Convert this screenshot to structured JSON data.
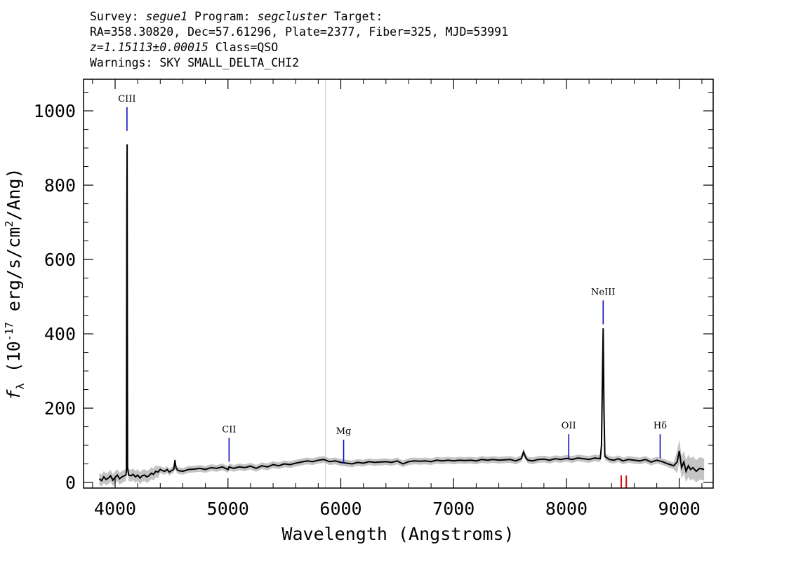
{
  "header": {
    "line1": {
      "survey_label": "Survey:",
      "survey": "segue1",
      "program_label": "Program:",
      "program": "segcluster",
      "target_label": "Target:"
    },
    "line2": "RA=358.30820, Dec=57.61296, Plate=2377, Fiber=325, MJD=53991",
    "line3": {
      "z": "z=1.15113±0.00015",
      "class": "Class=QSO"
    },
    "line4": "Warnings: SKY SMALL_DELTA_CHI2"
  },
  "chart_data": {
    "type": "line",
    "xlabel": "Wavelength (Angstroms)",
    "ylabel": "f",
    "ylabel_sub": "λ",
    "ylabel_rest": " (10",
    "ylabel_exp": "-17",
    "ylabel_unit": " erg/s/cm",
    "ylabel_unit_exp": "2",
    "ylabel_end": "/Ang)",
    "xlim": [
      3720,
      9300
    ],
    "ylim": [
      -15,
      1085
    ],
    "xticks": [
      4000,
      5000,
      6000,
      7000,
      8000,
      9000
    ],
    "yticks": [
      0,
      200,
      400,
      600,
      800,
      1000
    ],
    "tick_labels_x": [
      "4000",
      "5000",
      "6000",
      "7000",
      "8000",
      "9000"
    ],
    "tick_labels_y": [
      "0",
      "200",
      "400",
      "600",
      "800",
      "1000"
    ],
    "vertical_reference_x": 5865,
    "emission_lines": [
      {
        "name": "CIII",
        "wavelength": 4105,
        "label_y": 1025
      },
      {
        "name": "CII",
        "wavelength": 5010,
        "label_y": 135
      },
      {
        "name": "Mg",
        "wavelength": 6025,
        "label_y": 130
      },
      {
        "name": "OII",
        "wavelength": 8020,
        "label_y": 145
      },
      {
        "name": "NeIII",
        "wavelength": 8325,
        "label_y": 505
      },
      {
        "name": "Hδ",
        "wavelength": 8830,
        "label_y": 145
      }
    ],
    "red_marks_x": [
      8485,
      8530
    ],
    "spectrum_points": [
      [
        3860,
        10
      ],
      [
        3880,
        5
      ],
      [
        3900,
        15
      ],
      [
        3920,
        8
      ],
      [
        3940,
        12
      ],
      [
        3960,
        18
      ],
      [
        3980,
        6
      ],
      [
        4000,
        14
      ],
      [
        4020,
        20
      ],
      [
        4040,
        10
      ],
      [
        4060,
        15
      ],
      [
        4080,
        18
      ],
      [
        4095,
        20
      ],
      [
        4100,
        30
      ],
      [
        4104,
        740
      ],
      [
        4106,
        910
      ],
      [
        4108,
        440
      ],
      [
        4110,
        40
      ],
      [
        4120,
        20
      ],
      [
        4140,
        18
      ],
      [
        4160,
        22
      ],
      [
        4180,
        15
      ],
      [
        4200,
        20
      ],
      [
        4220,
        12
      ],
      [
        4240,
        18
      ],
      [
        4260,
        20
      ],
      [
        4280,
        15
      ],
      [
        4300,
        18
      ],
      [
        4320,
        25
      ],
      [
        4340,
        22
      ],
      [
        4360,
        30
      ],
      [
        4380,
        28
      ],
      [
        4400,
        35
      ],
      [
        4420,
        32
      ],
      [
        4440,
        30
      ],
      [
        4460,
        35
      ],
      [
        4480,
        28
      ],
      [
        4500,
        32
      ],
      [
        4520,
        35
      ],
      [
        4530,
        60
      ],
      [
        4540,
        38
      ],
      [
        4560,
        32
      ],
      [
        4600,
        30
      ],
      [
        4650,
        35
      ],
      [
        4700,
        36
      ],
      [
        4750,
        38
      ],
      [
        4800,
        35
      ],
      [
        4850,
        40
      ],
      [
        4900,
        38
      ],
      [
        4950,
        42
      ],
      [
        5000,
        35
      ],
      [
        5010,
        42
      ],
      [
        5050,
        38
      ],
      [
        5100,
        42
      ],
      [
        5150,
        40
      ],
      [
        5200,
        44
      ],
      [
        5250,
        38
      ],
      [
        5300,
        45
      ],
      [
        5350,
        42
      ],
      [
        5400,
        48
      ],
      [
        5450,
        45
      ],
      [
        5500,
        50
      ],
      [
        5550,
        48
      ],
      [
        5600,
        52
      ],
      [
        5650,
        55
      ],
      [
        5700,
        58
      ],
      [
        5750,
        56
      ],
      [
        5800,
        60
      ],
      [
        5850,
        62
      ],
      [
        5900,
        56
      ],
      [
        5950,
        58
      ],
      [
        6000,
        54
      ],
      [
        6050,
        52
      ],
      [
        6100,
        50
      ],
      [
        6150,
        54
      ],
      [
        6200,
        52
      ],
      [
        6250,
        56
      ],
      [
        6300,
        54
      ],
      [
        6350,
        55
      ],
      [
        6400,
        56
      ],
      [
        6450,
        54
      ],
      [
        6500,
        58
      ],
      [
        6550,
        50
      ],
      [
        6600,
        56
      ],
      [
        6650,
        58
      ],
      [
        6700,
        57
      ],
      [
        6750,
        58
      ],
      [
        6800,
        56
      ],
      [
        6850,
        60
      ],
      [
        6900,
        58
      ],
      [
        6950,
        60
      ],
      [
        7000,
        58
      ],
      [
        7050,
        60
      ],
      [
        7100,
        59
      ],
      [
        7150,
        60
      ],
      [
        7200,
        58
      ],
      [
        7250,
        62
      ],
      [
        7300,
        60
      ],
      [
        7350,
        62
      ],
      [
        7400,
        60
      ],
      [
        7450,
        61
      ],
      [
        7500,
        62
      ],
      [
        7550,
        58
      ],
      [
        7600,
        64
      ],
      [
        7620,
        82
      ],
      [
        7640,
        66
      ],
      [
        7660,
        60
      ],
      [
        7700,
        58
      ],
      [
        7750,
        62
      ],
      [
        7800,
        63
      ],
      [
        7850,
        60
      ],
      [
        7900,
        64
      ],
      [
        7950,
        62
      ],
      [
        8000,
        65
      ],
      [
        8050,
        62
      ],
      [
        8100,
        66
      ],
      [
        8150,
        64
      ],
      [
        8200,
        62
      ],
      [
        8250,
        66
      ],
      [
        8300,
        64
      ],
      [
        8310,
        100
      ],
      [
        8318,
        260
      ],
      [
        8325,
        415
      ],
      [
        8332,
        200
      ],
      [
        8340,
        70
      ],
      [
        8380,
        62
      ],
      [
        8420,
        60
      ],
      [
        8460,
        64
      ],
      [
        8500,
        58
      ],
      [
        8550,
        62
      ],
      [
        8600,
        60
      ],
      [
        8650,
        58
      ],
      [
        8700,
        62
      ],
      [
        8750,
        55
      ],
      [
        8800,
        60
      ],
      [
        8850,
        56
      ],
      [
        8900,
        50
      ],
      [
        8950,
        45
      ],
      [
        8980,
        55
      ],
      [
        9000,
        85
      ],
      [
        9020,
        40
      ],
      [
        9040,
        55
      ],
      [
        9060,
        30
      ],
      [
        9080,
        45
      ],
      [
        9100,
        35
      ],
      [
        9120,
        40
      ],
      [
        9150,
        30
      ],
      [
        9180,
        38
      ],
      [
        9220,
        35
      ]
    ]
  }
}
